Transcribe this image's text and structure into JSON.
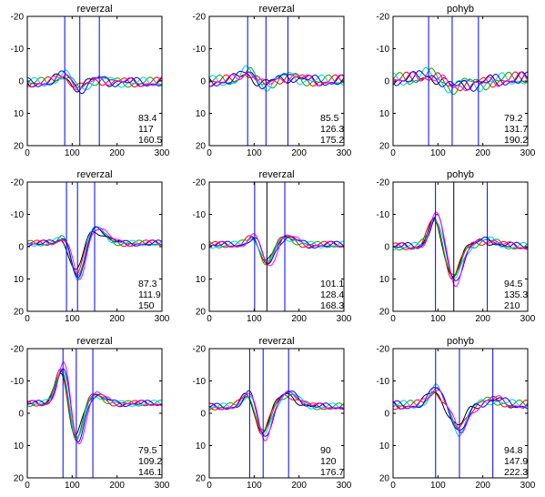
{
  "figure": {
    "colors": {
      "trace": [
        "#000000",
        "#ff0000",
        "#00aa00",
        "#00c8ff",
        "#0000ff",
        "#ff00ff"
      ],
      "cursor": "#0000ff",
      "cursor_center_dark": "#000000"
    }
  },
  "chart_data": [
    {
      "type": "line",
      "title": "reverzal",
      "xlim": [
        0,
        300
      ],
      "ylim": [
        -20,
        20
      ],
      "y_inverted": true,
      "xticks": [
        "0",
        "100",
        "200",
        "300"
      ],
      "yticks": [
        "-20",
        "-10",
        "0",
        "10",
        "20"
      ],
      "markers_ms": [
        83.4,
        117,
        160.5
      ],
      "annotation": [
        "83.4",
        "117",
        "160.5"
      ],
      "center_marker_color": "#0000ff",
      "series_shape": {
        "baseline": 0.5,
        "p1_amp": -2.5,
        "n2_amp": 2.0,
        "p3_amp": -1.0,
        "noise": 1.3
      }
    },
    {
      "type": "line",
      "title": "reverzal",
      "xlim": [
        0,
        300
      ],
      "ylim": [
        -20,
        20
      ],
      "y_inverted": true,
      "xticks": [
        "0",
        "100",
        "200",
        "300"
      ],
      "yticks": [
        "-20",
        "-10",
        "0",
        "10",
        "20"
      ],
      "markers_ms": [
        85.5,
        126.3,
        175.2
      ],
      "annotation": [
        "85.5",
        "126.3",
        "175.2"
      ],
      "center_marker_color": "#0000ff",
      "series_shape": {
        "baseline": 0.0,
        "p1_amp": -3.0,
        "n2_amp": 1.5,
        "p3_amp": -1.5,
        "noise": 1.5
      }
    },
    {
      "type": "line",
      "title": "pohyb",
      "xlim": [
        0,
        300
      ],
      "ylim": [
        -20,
        20
      ],
      "y_inverted": true,
      "xticks": [
        "0",
        "100",
        "200",
        "300"
      ],
      "yticks": [
        "-20",
        "-10",
        "0",
        "10",
        "20"
      ],
      "markers_ms": [
        79.2,
        131.7,
        190.2
      ],
      "annotation": [
        "79.2",
        "131.7",
        "190.2"
      ],
      "center_marker_color": "#0000ff",
      "series_shape": {
        "baseline": -0.5,
        "p1_amp": -1.5,
        "n2_amp": 2.5,
        "p3_amp": 1.5,
        "noise": 1.8
      }
    },
    {
      "type": "line",
      "title": "reverzal",
      "xlim": [
        0,
        300
      ],
      "ylim": [
        -20,
        20
      ],
      "y_inverted": true,
      "xticks": [
        "0",
        "100",
        "200",
        "300"
      ],
      "yticks": [
        "-20",
        "-10",
        "0",
        "10",
        "20"
      ],
      "markers_ms": [
        87.3,
        111.9,
        150
      ],
      "annotation": [
        "87.3",
        "111.9",
        "150"
      ],
      "center_marker_color": "#0000ff",
      "series_shape": {
        "baseline": -1.0,
        "p1_amp": -3.0,
        "n2_amp": 12.0,
        "p3_amp": -5.0,
        "noise": 0.8
      }
    },
    {
      "type": "line",
      "title": "reverzal",
      "xlim": [
        0,
        300
      ],
      "ylim": [
        -20,
        20
      ],
      "y_inverted": true,
      "xticks": [
        "0",
        "100",
        "200",
        "300"
      ],
      "yticks": [
        "-20",
        "-10",
        "0",
        "10",
        "20"
      ],
      "markers_ms": [
        101.1,
        128.4,
        168.3
      ],
      "annotation": [
        "101.1",
        "128.4",
        "168.3"
      ],
      "center_marker_color": "#000000",
      "series_shape": {
        "baseline": -0.5,
        "p1_amp": -3.0,
        "n2_amp": 6.5,
        "p3_amp": -2.5,
        "noise": 0.9
      }
    },
    {
      "type": "line",
      "title": "pohyb",
      "xlim": [
        0,
        300
      ],
      "ylim": [
        -20,
        20
      ],
      "y_inverted": true,
      "xticks": [
        "0",
        "100",
        "200",
        "300"
      ],
      "yticks": [
        "-20",
        "-10",
        "0",
        "10",
        "20"
      ],
      "markers_ms": [
        94.5,
        135.3,
        210
      ],
      "annotation": [
        "94.5",
        "135.3",
        "210"
      ],
      "center_marker_color": "#000000",
      "series_shape": {
        "baseline": 0.0,
        "p1_amp": -9.0,
        "n2_amp": 10.0,
        "p3_amp": -2.0,
        "noise": 1.0
      }
    },
    {
      "type": "line",
      "title": "reverzal",
      "xlim": [
        0,
        300
      ],
      "ylim": [
        -20,
        20
      ],
      "y_inverted": true,
      "xticks": [
        "0",
        "100",
        "200",
        "300"
      ],
      "yticks": [
        "-20",
        "-10",
        "0",
        "10",
        "20"
      ],
      "markers_ms": [
        79.5,
        109.2,
        146.1
      ],
      "annotation": [
        "79.5",
        "109.2",
        "146.1"
      ],
      "center_marker_color": "#0000ff",
      "series_shape": {
        "baseline": -3.0,
        "p1_amp": -12.0,
        "n2_amp": 13.0,
        "p3_amp": -3.0,
        "noise": 0.8
      }
    },
    {
      "type": "line",
      "title": "reverzal",
      "xlim": [
        0,
        300
      ],
      "ylim": [
        -20,
        20
      ],
      "y_inverted": true,
      "xticks": [
        "0",
        "100",
        "200",
        "300"
      ],
      "yticks": [
        "-20",
        "-10",
        "0",
        "10",
        "20"
      ],
      "markers_ms": [
        90,
        120,
        176.7
      ],
      "annotation": [
        "90",
        "120",
        "176.7"
      ],
      "center_marker_color": "#0000ff",
      "series_shape": {
        "baseline": -2.0,
        "p1_amp": -4.5,
        "n2_amp": 9.0,
        "p3_amp": -4.0,
        "noise": 0.9
      }
    },
    {
      "type": "line",
      "title": "pohyb",
      "xlim": [
        0,
        300
      ],
      "ylim": [
        -20,
        20
      ],
      "y_inverted": true,
      "xticks": [
        "0",
        "100",
        "200",
        "300"
      ],
      "yticks": [
        "-20",
        "-10",
        "0",
        "10",
        "20"
      ],
      "markers_ms": [
        94.8,
        147.9,
        222.3
      ],
      "annotation": [
        "94.8",
        "147.9",
        "222.3"
      ],
      "center_marker_color": "#0000ff",
      "series_shape": {
        "baseline": -2.5,
        "p1_amp": -5.0,
        "n2_amp": 8.0,
        "p3_amp": -1.5,
        "noise": 1.2
      }
    }
  ]
}
